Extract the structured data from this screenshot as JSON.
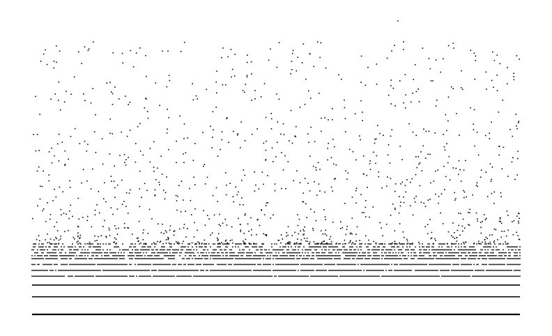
{
  "chart_data": {
    "type": "scatter",
    "title": "",
    "xlabel": "",
    "ylabel": "",
    "show_axes": false,
    "grid": false,
    "legend": "none",
    "xlim": [
      0,
      1
    ],
    "ylim": [
      0,
      1
    ],
    "point_color": "#000000",
    "series": [
      {
        "rows": [
          {
            "y": 0.0,
            "density": 1.0
          },
          {
            "y": 0.06,
            "density": 1.0
          },
          {
            "y": 0.1,
            "density": 0.98
          },
          {
            "y": 0.13,
            "density": 0.95
          },
          {
            "y": 0.15,
            "density": 0.92
          },
          {
            "y": 0.17,
            "density": 0.88
          },
          {
            "y": 0.19,
            "density": 0.82
          },
          {
            "y": 0.2,
            "density": 0.76
          },
          {
            "y": 0.21,
            "density": 0.68
          },
          {
            "y": 0.22,
            "density": 0.6
          },
          {
            "y": 0.23,
            "density": 0.52
          },
          {
            "y": 0.24,
            "density": 0.44
          }
        ],
        "scatter_band": {
          "y_min": 0.24,
          "y_max": 0.93,
          "count": 1100
        },
        "outliers": [
          {
            "x": 0.75,
            "y": 1.0
          },
          {
            "x": 0.88,
            "y": 0.83
          },
          {
            "x": 0.53,
            "y": 0.82
          },
          {
            "x": 0.16,
            "y": 0.79
          },
          {
            "x": 0.07,
            "y": 0.76
          },
          {
            "x": 0.08,
            "y": 0.75
          },
          {
            "x": 0.64,
            "y": 0.73
          },
          {
            "x": 0.6,
            "y": 0.67
          },
          {
            "x": 0.13,
            "y": 0.68
          },
          {
            "x": 0.4,
            "y": 0.67
          },
          {
            "x": 0.35,
            "y": 0.62
          },
          {
            "x": 0.98,
            "y": 0.63
          },
          {
            "x": 0.72,
            "y": 0.61
          },
          {
            "x": 0.48,
            "y": 0.59
          }
        ]
      }
    ]
  }
}
